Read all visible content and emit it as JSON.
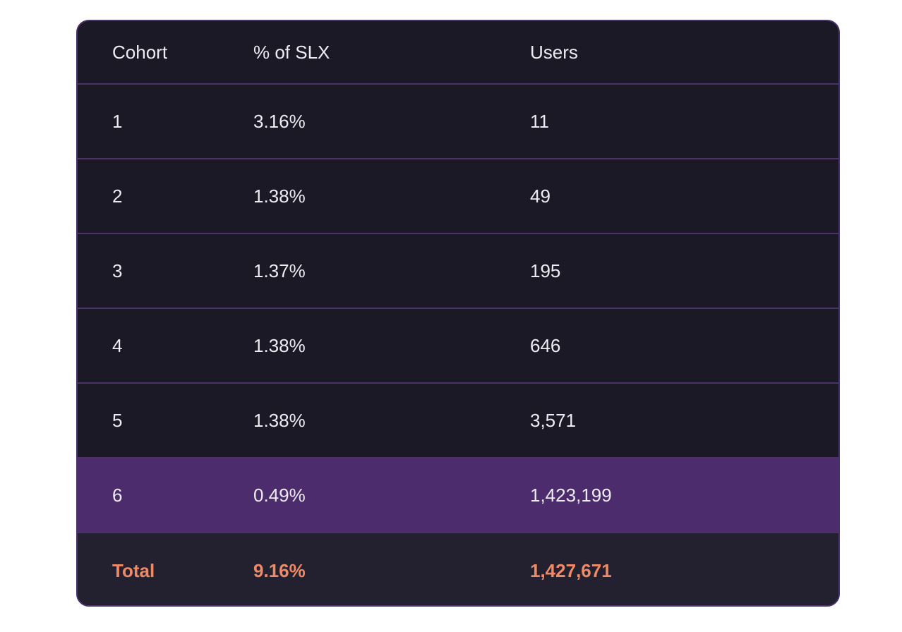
{
  "table": {
    "headers": [
      "Cohort",
      "% of SLX",
      "Users"
    ],
    "rows": [
      {
        "cohort": "1",
        "pct": "3.16%",
        "users": "11"
      },
      {
        "cohort": "2",
        "pct": "1.38%",
        "users": "49"
      },
      {
        "cohort": "3",
        "pct": "1.37%",
        "users": "195"
      },
      {
        "cohort": "4",
        "pct": "1.38%",
        "users": "646"
      },
      {
        "cohort": "5",
        "pct": "1.38%",
        "users": "3,571"
      },
      {
        "cohort": "6",
        "pct": "0.49%",
        "users": "1,423,199"
      }
    ],
    "total": {
      "label": "Total",
      "pct": "9.16%",
      "users": "1,427,671"
    }
  },
  "colors": {
    "background": "#1c1926",
    "border": "#4a3168",
    "highlight_row": "#4c2c6c",
    "total_text": "#ef8a66",
    "text": "#ececf2"
  }
}
